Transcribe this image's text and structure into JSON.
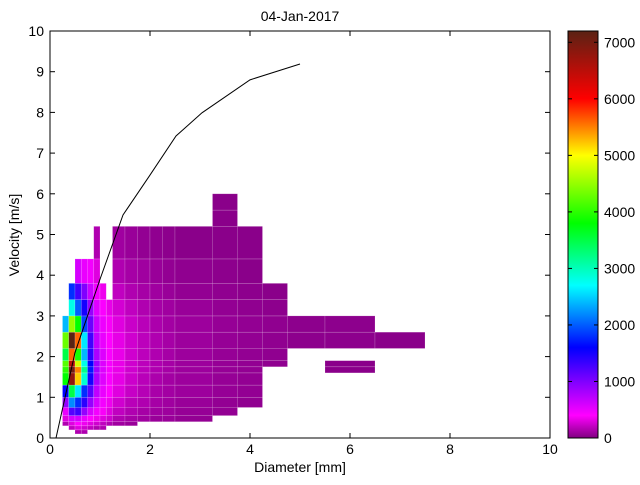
{
  "chart_data": {
    "type": "heatmap",
    "title": "04-Jan-2017",
    "xlabel": "Diameter [mm]",
    "ylabel": "Velocity [m/s]",
    "xlim": [
      0,
      10
    ],
    "ylim": [
      0,
      10
    ],
    "xticks": [
      "0",
      "2",
      "4",
      "6",
      "8",
      "10"
    ],
    "yticks": [
      "0",
      "1",
      "2",
      "3",
      "4",
      "5",
      "6",
      "7",
      "8",
      "9",
      "10"
    ],
    "grid": false,
    "colorbar": {
      "range": [
        0,
        7200
      ],
      "ticks": [
        "0",
        "1000",
        "2000",
        "3000",
        "4000",
        "5000",
        "6000",
        "7000"
      ],
      "colormap": [
        {
          "value": 0,
          "color": "#800080"
        },
        {
          "value": 400,
          "color": "#ff00ff"
        },
        {
          "value": 1000,
          "color": "#8000ff"
        },
        {
          "value": 1600,
          "color": "#0000ff"
        },
        {
          "value": 2700,
          "color": "#00ffff"
        },
        {
          "value": 3800,
          "color": "#00ff00"
        },
        {
          "value": 5000,
          "color": "#ffff00"
        },
        {
          "value": 6000,
          "color": "#ff0000"
        },
        {
          "value": 7200,
          "color": "#5a2214"
        }
      ]
    },
    "diameter_edges": [
      0.25,
      0.375,
      0.5,
      0.625,
      0.75,
      0.875,
      1.0,
      1.125,
      1.25,
      1.5,
      1.75,
      2.0,
      2.25,
      2.5,
      3.25,
      3.75,
      4.25,
      4.75,
      5.5,
      6.5,
      7.5
    ],
    "velocity_edges": [
      0.1,
      0.2,
      0.3,
      0.4,
      0.55,
      0.75,
      1.0,
      1.3,
      1.6,
      1.75,
      1.9,
      2.2,
      2.6,
      3.0,
      3.4,
      3.8,
      4.4,
      5.2,
      5.6,
      6.0
    ],
    "counts": [
      [
        0,
        0,
        150,
        150,
        0,
        0,
        0,
        0,
        0,
        0,
        0,
        0,
        0,
        0,
        0,
        0,
        0,
        0,
        0,
        0
      ],
      [
        0,
        200,
        300,
        250,
        200,
        150,
        150,
        0,
        0,
        0,
        0,
        0,
        0,
        0,
        0,
        0,
        0,
        0,
        0,
        0
      ],
      [
        150,
        300,
        400,
        350,
        300,
        250,
        200,
        150,
        100,
        80,
        0,
        0,
        0,
        0,
        0,
        0,
        0,
        0,
        0,
        0
      ],
      [
        300,
        600,
        600,
        500,
        400,
        350,
        300,
        250,
        150,
        120,
        100,
        80,
        80,
        60,
        0,
        0,
        0,
        0,
        0,
        0
      ],
      [
        500,
        1200,
        1300,
        900,
        600,
        450,
        380,
        300,
        200,
        150,
        120,
        100,
        90,
        70,
        60,
        0,
        0,
        0,
        0,
        0
      ],
      [
        900,
        2200,
        1800,
        1400,
        900,
        600,
        450,
        350,
        250,
        180,
        150,
        120,
        100,
        80,
        60,
        50,
        0,
        0,
        0,
        0
      ],
      [
        1600,
        3500,
        2600,
        1800,
        1200,
        700,
        500,
        400,
        300,
        220,
        170,
        130,
        110,
        90,
        70,
        60,
        0,
        0,
        0,
        0
      ],
      [
        3800,
        6800,
        5200,
        2900,
        1500,
        800,
        550,
        420,
        320,
        240,
        180,
        140,
        110,
        90,
        70,
        60,
        0,
        0,
        0,
        0
      ],
      [
        4000,
        7000,
        5500,
        3200,
        1700,
        850,
        560,
        430,
        330,
        250,
        190,
        150,
        120,
        90,
        70,
        60,
        0,
        0,
        30,
        0
      ],
      [
        4200,
        6500,
        4800,
        2800,
        1600,
        850,
        560,
        430,
        330,
        250,
        190,
        150,
        120,
        90,
        70,
        60,
        50,
        0,
        30,
        0
      ],
      [
        3500,
        5600,
        3900,
        2400,
        1400,
        800,
        560,
        420,
        330,
        250,
        190,
        150,
        120,
        90,
        70,
        60,
        50,
        0,
        0,
        0
      ],
      [
        4300,
        7200,
        5600,
        2600,
        1300,
        700,
        500,
        400,
        320,
        250,
        190,
        150,
        120,
        90,
        70,
        60,
        50,
        40,
        40,
        30
      ],
      [
        2400,
        4500,
        3800,
        1900,
        1100,
        650,
        480,
        380,
        300,
        230,
        180,
        140,
        110,
        90,
        70,
        60,
        50,
        40,
        40,
        0
      ],
      [
        0,
        2800,
        2000,
        1500,
        900,
        550,
        420,
        330,
        260,
        200,
        150,
        120,
        100,
        80,
        60,
        50,
        40,
        0,
        0,
        0
      ],
      [
        0,
        1800,
        1300,
        1000,
        650,
        450,
        350,
        0,
        200,
        150,
        120,
        100,
        80,
        60,
        50,
        40,
        30,
        0,
        0,
        0
      ],
      [
        0,
        0,
        600,
        500,
        450,
        300,
        0,
        0,
        150,
        120,
        100,
        80,
        60,
        50,
        40,
        30,
        0,
        0,
        0,
        0
      ],
      [
        0,
        0,
        0,
        0,
        0,
        150,
        0,
        0,
        100,
        80,
        60,
        50,
        40,
        30,
        30,
        30,
        0,
        0,
        0,
        0
      ],
      [
        0,
        0,
        0,
        0,
        0,
        0,
        0,
        0,
        0,
        0,
        0,
        0,
        0,
        0,
        30,
        0,
        0,
        0,
        0,
        0
      ],
      [
        0,
        0,
        0,
        0,
        0,
        0,
        0,
        0,
        0,
        0,
        0,
        0,
        0,
        0,
        30,
        0,
        0,
        0,
        0,
        0
      ]
    ],
    "fall_speed_curve": {
      "x": [
        0.12,
        0.5,
        1.0,
        1.46,
        2.0,
        2.52,
        3.04,
        4.0,
        5.0
      ],
      "y": [
        0,
        2.1,
        3.9,
        5.48,
        6.46,
        7.42,
        7.99,
        8.8,
        9.19
      ],
      "color": "#000000"
    }
  }
}
